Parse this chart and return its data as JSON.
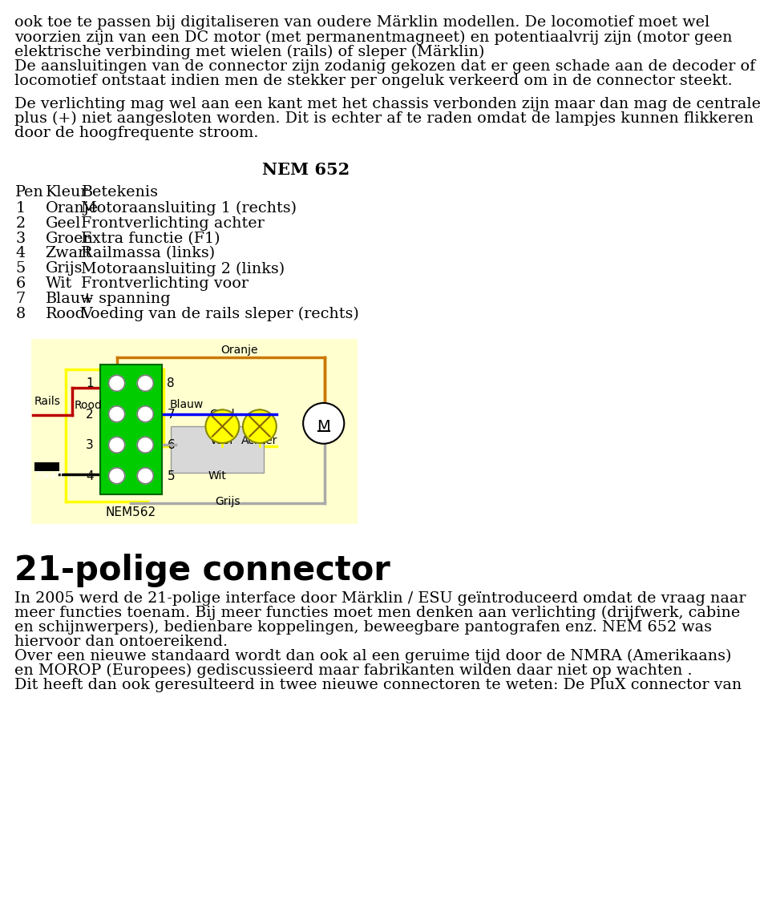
{
  "bg_color": "#ffffff",
  "text_color": "#000000",
  "body_text": [
    "ook toe te passen bij digitaliseren van oudere Märklin modellen. De locomotief moet wel",
    "voorzien zijn van een DC motor (met permanentmagneet) en potentiaalvrij zijn (motor geen",
    "elektrische verbinding met wielen (rails) of sleper (Märklin)",
    "De aansluitingen van de connector zijn zodanig gekozen dat er geen schade aan de decoder of",
    "locomotief ontstaat indien men de stekker per ongeluk verkeerd om in de connector steekt."
  ],
  "body_text2": [
    "De verlichting mag wel aan een kant met het chassis verbonden zijn maar dan mag de centrale",
    "plus (+) niet aangesloten worden. Dit is echter af te raden omdat de lampjes kunnen flikkeren",
    "door de hoogfrequente stroom."
  ],
  "nem_title": "NEM 652",
  "table_header": [
    "Pen",
    "Kleur",
    "Betekenis"
  ],
  "table_rows": [
    [
      "1",
      "Oranje",
      "Motoraansluiting 1 (rechts)"
    ],
    [
      "2",
      "Geel",
      "Frontverlichting achter"
    ],
    [
      "3",
      "Groen",
      "Extra functie (F1)"
    ],
    [
      "4",
      "Zwart",
      "Railmassa (links)"
    ],
    [
      "5",
      "Grijs",
      "Motoraansluiting 2 (links)"
    ],
    [
      "6",
      "Wit",
      "Frontverlichting voor"
    ],
    [
      "7",
      "Blauw",
      "+ spanning"
    ],
    [
      "8",
      "Rood",
      "Voeding van de rails sleper (rechts)"
    ]
  ],
  "section_title": "21-polige connector",
  "bottom_text": [
    "In 2005 werd de 21-polige interface door Märklin / ESU geïntroduceerd omdat de vraag naar",
    "meer functies toenam. Bij meer functies moet men denken aan verlichting (drijfwerk, cabine",
    "en schijnwerpers), bedienbare koppelingen, beweegbare pantografen enz. NEM 652 was",
    "hiervoor dan ontoereikend.",
    "Over een nieuwe standaard wordt dan ook al een geruime tijd door de NMRA (Amerikaans)",
    "en MOROP (Europees) gediscussieerd maar fabrikanten wilden daar niet op wachten .",
    "Dit heeft dan ook geresulteerd in twee nieuwe connectoren te weten: De PluX connector van"
  ],
  "diag_bg_color": "#ffffd0",
  "connector_green": "#00cc00",
  "connector_edge": "#006600"
}
